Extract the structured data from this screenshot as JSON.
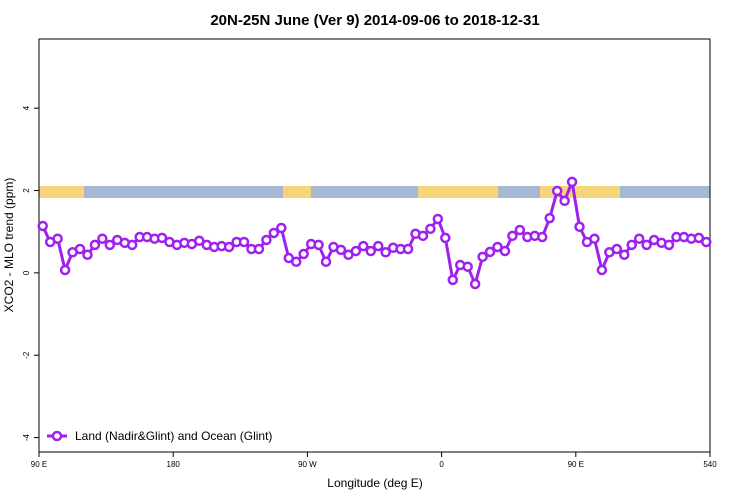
{
  "chart_data": {
    "type": "line",
    "title": "20N-25N June (Ver 9)   2014-09-06 to 2018-12-31",
    "xlabel": "Longitude (deg E)",
    "ylabel": "XCO2 - MLO trend (ppm)",
    "xlim": [
      90,
      540
    ],
    "ylim": [
      -4.35,
      5.68
    ],
    "xticks": [
      {
        "value": 90,
        "label": "90 E"
      },
      180,
      {
        "value": 270,
        "label": "90 W"
      },
      {
        "value": 360,
        "label": "0"
      },
      {
        "value": 450,
        "label": "90 E"
      },
      540
    ],
    "yticks": [
      -4,
      -2,
      0,
      2,
      4
    ],
    "legend": "bottom-left",
    "x": [
      92.5,
      97.5,
      102.5,
      107.5,
      112.5,
      117.5,
      122.5,
      127.5,
      132.5,
      137.5,
      142.5,
      147.5,
      152.5,
      157.5,
      162.5,
      167.5,
      172.5,
      177.5,
      182.5,
      187.5,
      192.5,
      197.5,
      202.5,
      207.5,
      212.5,
      217.5,
      222.5,
      227.5,
      232.5,
      237.5,
      242.5,
      247.5,
      252.5,
      257.5,
      262.5,
      267.5,
      272.5,
      277.5,
      282.5,
      287.5,
      292.5,
      297.5,
      302.5,
      307.5,
      312.5,
      317.5,
      322.5,
      327.5,
      332.5,
      337.5,
      342.5,
      347.5,
      352.5,
      357.5,
      362.5,
      367.5,
      372.5,
      377.5,
      382.5,
      387.5,
      392.5,
      397.5,
      402.5,
      407.5,
      412.5,
      417.5,
      422.5,
      427.5,
      432.5,
      437.5,
      442.5,
      447.5,
      452.5,
      457.5,
      462.5,
      467.5,
      472.5,
      477.5,
      482.5,
      487.5,
      492.5,
      497.5,
      502.5,
      507.5,
      512.5,
      517.5,
      522.5,
      527.5,
      532.5,
      537.5
    ],
    "series": [
      {
        "name": "Land (Nadir&Glint) and Ocean (Glint)",
        "color": "#a020f0",
        "values": [
          1.14,
          0.75,
          0.83,
          0.07,
          0.5,
          0.58,
          0.44,
          0.68,
          0.83,
          0.68,
          0.8,
          0.73,
          0.68,
          0.87,
          0.87,
          0.83,
          0.85,
          0.75,
          0.68,
          0.73,
          0.7,
          0.78,
          0.68,
          0.63,
          0.65,
          0.63,
          0.75,
          0.75,
          0.58,
          0.58,
          0.8,
          0.97,
          1.09,
          0.36,
          0.27,
          0.46,
          0.7,
          0.68,
          0.27,
          0.63,
          0.56,
          0.44,
          0.53,
          0.65,
          0.53,
          0.65,
          0.5,
          0.61,
          0.58,
          0.58,
          0.95,
          0.9,
          1.07,
          1.31,
          0.85,
          -0.17,
          0.19,
          0.15,
          -0.27,
          0.39,
          0.51,
          0.63,
          0.53,
          0.9,
          1.04,
          0.87,
          0.9,
          0.87,
          1.33,
          1.99,
          1.75,
          2.21,
          1.12,
          0.75,
          0.83,
          0.07,
          0.5,
          0.58,
          0.44,
          0.68,
          0.83,
          0.68,
          0.8,
          0.73,
          0.68,
          0.87,
          0.87,
          0.83,
          0.85,
          0.75
        ]
      }
    ]
  }
}
